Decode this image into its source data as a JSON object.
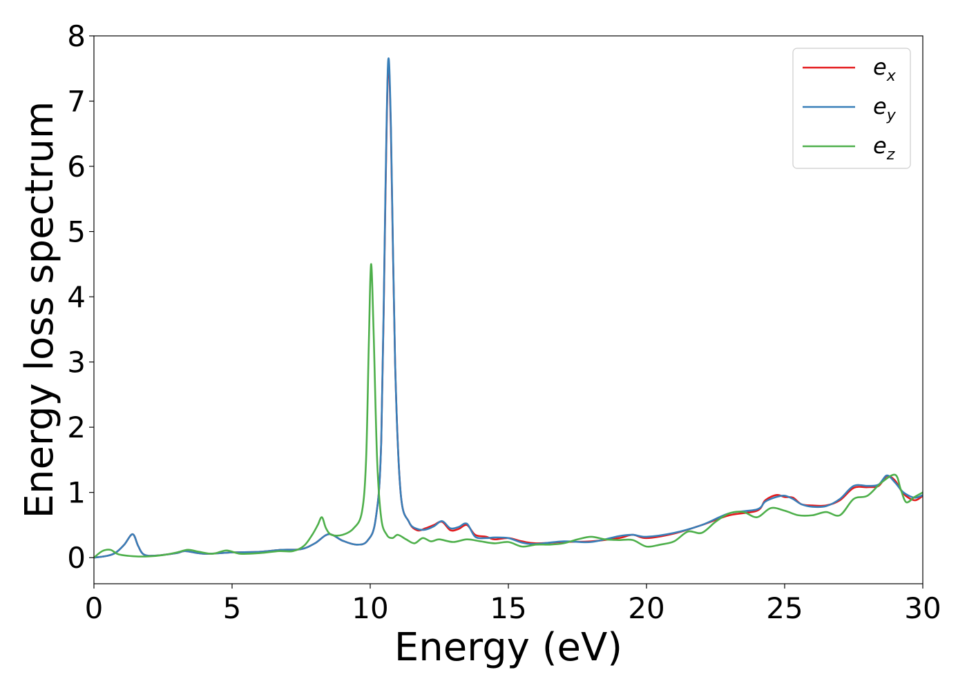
{
  "chart_data": {
    "type": "line",
    "xlabel": "Energy (eV)",
    "ylabel": "Energy loss spectrum",
    "xlim": [
      0,
      30
    ],
    "ylim": [
      -0.4,
      8
    ],
    "xticks": [
      0,
      5,
      10,
      15,
      20,
      25,
      30
    ],
    "yticks": [
      0,
      1,
      2,
      3,
      4,
      5,
      6,
      7,
      8
    ],
    "grid": false,
    "legend_position": "top-right",
    "series": [
      {
        "name": "e_x",
        "label_base": "e",
        "label_sub": "x",
        "color": "#e41a1c",
        "points": [
          [
            0,
            0.0
          ],
          [
            0.5,
            0.03
          ],
          [
            0.8,
            0.08
          ],
          [
            1.1,
            0.2
          ],
          [
            1.4,
            0.36
          ],
          [
            1.6,
            0.18
          ],
          [
            1.8,
            0.05
          ],
          [
            2.2,
            0.03
          ],
          [
            3.0,
            0.07
          ],
          [
            3.3,
            0.1
          ],
          [
            4.0,
            0.06
          ],
          [
            5.0,
            0.08
          ],
          [
            6.0,
            0.09
          ],
          [
            6.8,
            0.12
          ],
          [
            7.5,
            0.13
          ],
          [
            8.0,
            0.22
          ],
          [
            8.5,
            0.36
          ],
          [
            9.0,
            0.26
          ],
          [
            9.5,
            0.2
          ],
          [
            9.9,
            0.26
          ],
          [
            10.2,
            0.6
          ],
          [
            10.4,
            1.8
          ],
          [
            10.55,
            5.5
          ],
          [
            10.65,
            7.55
          ],
          [
            10.75,
            6.5
          ],
          [
            10.9,
            3.0
          ],
          [
            11.1,
            1.0
          ],
          [
            11.4,
            0.55
          ],
          [
            11.7,
            0.42
          ],
          [
            12.0,
            0.45
          ],
          [
            12.3,
            0.5
          ],
          [
            12.6,
            0.55
          ],
          [
            12.9,
            0.42
          ],
          [
            13.2,
            0.44
          ],
          [
            13.5,
            0.5
          ],
          [
            13.8,
            0.35
          ],
          [
            14.2,
            0.32
          ],
          [
            14.5,
            0.28
          ],
          [
            15.0,
            0.3
          ],
          [
            15.5,
            0.25
          ],
          [
            16.0,
            0.22
          ],
          [
            17.0,
            0.24
          ],
          [
            18.0,
            0.25
          ],
          [
            19.0,
            0.3
          ],
          [
            19.5,
            0.35
          ],
          [
            20.0,
            0.3
          ],
          [
            21.0,
            0.37
          ],
          [
            22.0,
            0.5
          ],
          [
            23.0,
            0.65
          ],
          [
            24.0,
            0.72
          ],
          [
            24.3,
            0.88
          ],
          [
            24.7,
            0.96
          ],
          [
            25.0,
            0.93
          ],
          [
            25.3,
            0.92
          ],
          [
            25.6,
            0.82
          ],
          [
            26.0,
            0.8
          ],
          [
            26.5,
            0.8
          ],
          [
            27.0,
            0.88
          ],
          [
            27.5,
            1.07
          ],
          [
            28.0,
            1.08
          ],
          [
            28.4,
            1.1
          ],
          [
            28.7,
            1.25
          ],
          [
            29.0,
            1.18
          ],
          [
            29.3,
            0.98
          ],
          [
            29.7,
            0.88
          ],
          [
            30,
            0.95
          ]
        ]
      },
      {
        "name": "e_y",
        "label_base": "e",
        "label_sub": "y",
        "color": "#377eb8",
        "points": [
          [
            0,
            0.0
          ],
          [
            0.5,
            0.03
          ],
          [
            0.8,
            0.08
          ],
          [
            1.1,
            0.2
          ],
          [
            1.4,
            0.36
          ],
          [
            1.6,
            0.18
          ],
          [
            1.8,
            0.05
          ],
          [
            2.2,
            0.03
          ],
          [
            3.0,
            0.07
          ],
          [
            3.3,
            0.1
          ],
          [
            4.0,
            0.06
          ],
          [
            5.0,
            0.08
          ],
          [
            6.0,
            0.09
          ],
          [
            6.8,
            0.12
          ],
          [
            7.5,
            0.13
          ],
          [
            8.0,
            0.22
          ],
          [
            8.5,
            0.36
          ],
          [
            9.0,
            0.26
          ],
          [
            9.5,
            0.2
          ],
          [
            9.9,
            0.26
          ],
          [
            10.2,
            0.6
          ],
          [
            10.4,
            1.8
          ],
          [
            10.55,
            5.6
          ],
          [
            10.65,
            7.62
          ],
          [
            10.75,
            6.6
          ],
          [
            10.9,
            3.0
          ],
          [
            11.1,
            1.0
          ],
          [
            11.4,
            0.55
          ],
          [
            11.7,
            0.44
          ],
          [
            12.0,
            0.43
          ],
          [
            12.3,
            0.48
          ],
          [
            12.6,
            0.56
          ],
          [
            12.9,
            0.45
          ],
          [
            13.2,
            0.47
          ],
          [
            13.5,
            0.52
          ],
          [
            13.8,
            0.32
          ],
          [
            14.2,
            0.3
          ],
          [
            14.5,
            0.31
          ],
          [
            15.0,
            0.3
          ],
          [
            15.5,
            0.23
          ],
          [
            16.0,
            0.21
          ],
          [
            17.0,
            0.25
          ],
          [
            18.0,
            0.24
          ],
          [
            19.0,
            0.33
          ],
          [
            19.5,
            0.35
          ],
          [
            20.0,
            0.32
          ],
          [
            21.0,
            0.38
          ],
          [
            22.0,
            0.5
          ],
          [
            23.0,
            0.68
          ],
          [
            24.0,
            0.74
          ],
          [
            24.3,
            0.86
          ],
          [
            24.7,
            0.93
          ],
          [
            25.0,
            0.95
          ],
          [
            25.3,
            0.9
          ],
          [
            25.6,
            0.82
          ],
          [
            26.0,
            0.78
          ],
          [
            26.5,
            0.79
          ],
          [
            27.0,
            0.9
          ],
          [
            27.5,
            1.1
          ],
          [
            28.0,
            1.1
          ],
          [
            28.4,
            1.12
          ],
          [
            28.7,
            1.26
          ],
          [
            29.0,
            1.15
          ],
          [
            29.3,
            1.0
          ],
          [
            29.7,
            0.92
          ],
          [
            30,
            0.96
          ]
        ]
      },
      {
        "name": "e_z",
        "label_base": "e",
        "label_sub": "z",
        "color": "#4daf4a",
        "points": [
          [
            0,
            0.0
          ],
          [
            0.3,
            0.1
          ],
          [
            0.6,
            0.12
          ],
          [
            0.9,
            0.05
          ],
          [
            1.5,
            0.02
          ],
          [
            2.0,
            0.02
          ],
          [
            2.5,
            0.04
          ],
          [
            3.0,
            0.08
          ],
          [
            3.4,
            0.12
          ],
          [
            3.8,
            0.09
          ],
          [
            4.3,
            0.06
          ],
          [
            4.8,
            0.11
          ],
          [
            5.3,
            0.06
          ],
          [
            6.0,
            0.07
          ],
          [
            6.7,
            0.1
          ],
          [
            7.2,
            0.1
          ],
          [
            7.6,
            0.18
          ],
          [
            7.9,
            0.35
          ],
          [
            8.1,
            0.5
          ],
          [
            8.25,
            0.62
          ],
          [
            8.4,
            0.45
          ],
          [
            8.6,
            0.35
          ],
          [
            9.0,
            0.35
          ],
          [
            9.4,
            0.45
          ],
          [
            9.7,
            0.7
          ],
          [
            9.85,
            1.5
          ],
          [
            9.95,
            3.3
          ],
          [
            10.03,
            4.5
          ],
          [
            10.12,
            3.5
          ],
          [
            10.25,
            1.5
          ],
          [
            10.4,
            0.6
          ],
          [
            10.6,
            0.35
          ],
          [
            10.8,
            0.3
          ],
          [
            11.0,
            0.35
          ],
          [
            11.3,
            0.28
          ],
          [
            11.6,
            0.22
          ],
          [
            11.9,
            0.3
          ],
          [
            12.2,
            0.25
          ],
          [
            12.5,
            0.28
          ],
          [
            13.0,
            0.24
          ],
          [
            13.5,
            0.28
          ],
          [
            14.0,
            0.25
          ],
          [
            14.5,
            0.22
          ],
          [
            15.0,
            0.24
          ],
          [
            15.5,
            0.17
          ],
          [
            16.0,
            0.2
          ],
          [
            16.5,
            0.2
          ],
          [
            17.0,
            0.22
          ],
          [
            17.5,
            0.28
          ],
          [
            18.0,
            0.32
          ],
          [
            18.5,
            0.28
          ],
          [
            19.0,
            0.27
          ],
          [
            19.5,
            0.27
          ],
          [
            20.0,
            0.17
          ],
          [
            20.5,
            0.2
          ],
          [
            21.0,
            0.25
          ],
          [
            21.5,
            0.4
          ],
          [
            22.0,
            0.38
          ],
          [
            22.5,
            0.55
          ],
          [
            23.0,
            0.68
          ],
          [
            23.5,
            0.7
          ],
          [
            24.0,
            0.62
          ],
          [
            24.5,
            0.76
          ],
          [
            25.0,
            0.72
          ],
          [
            25.5,
            0.65
          ],
          [
            26.0,
            0.65
          ],
          [
            26.5,
            0.7
          ],
          [
            27.0,
            0.65
          ],
          [
            27.5,
            0.9
          ],
          [
            28.0,
            0.95
          ],
          [
            28.5,
            1.15
          ],
          [
            29.0,
            1.27
          ],
          [
            29.2,
            1.05
          ],
          [
            29.4,
            0.85
          ],
          [
            29.7,
            0.93
          ],
          [
            30,
            1.0
          ]
        ]
      }
    ]
  }
}
